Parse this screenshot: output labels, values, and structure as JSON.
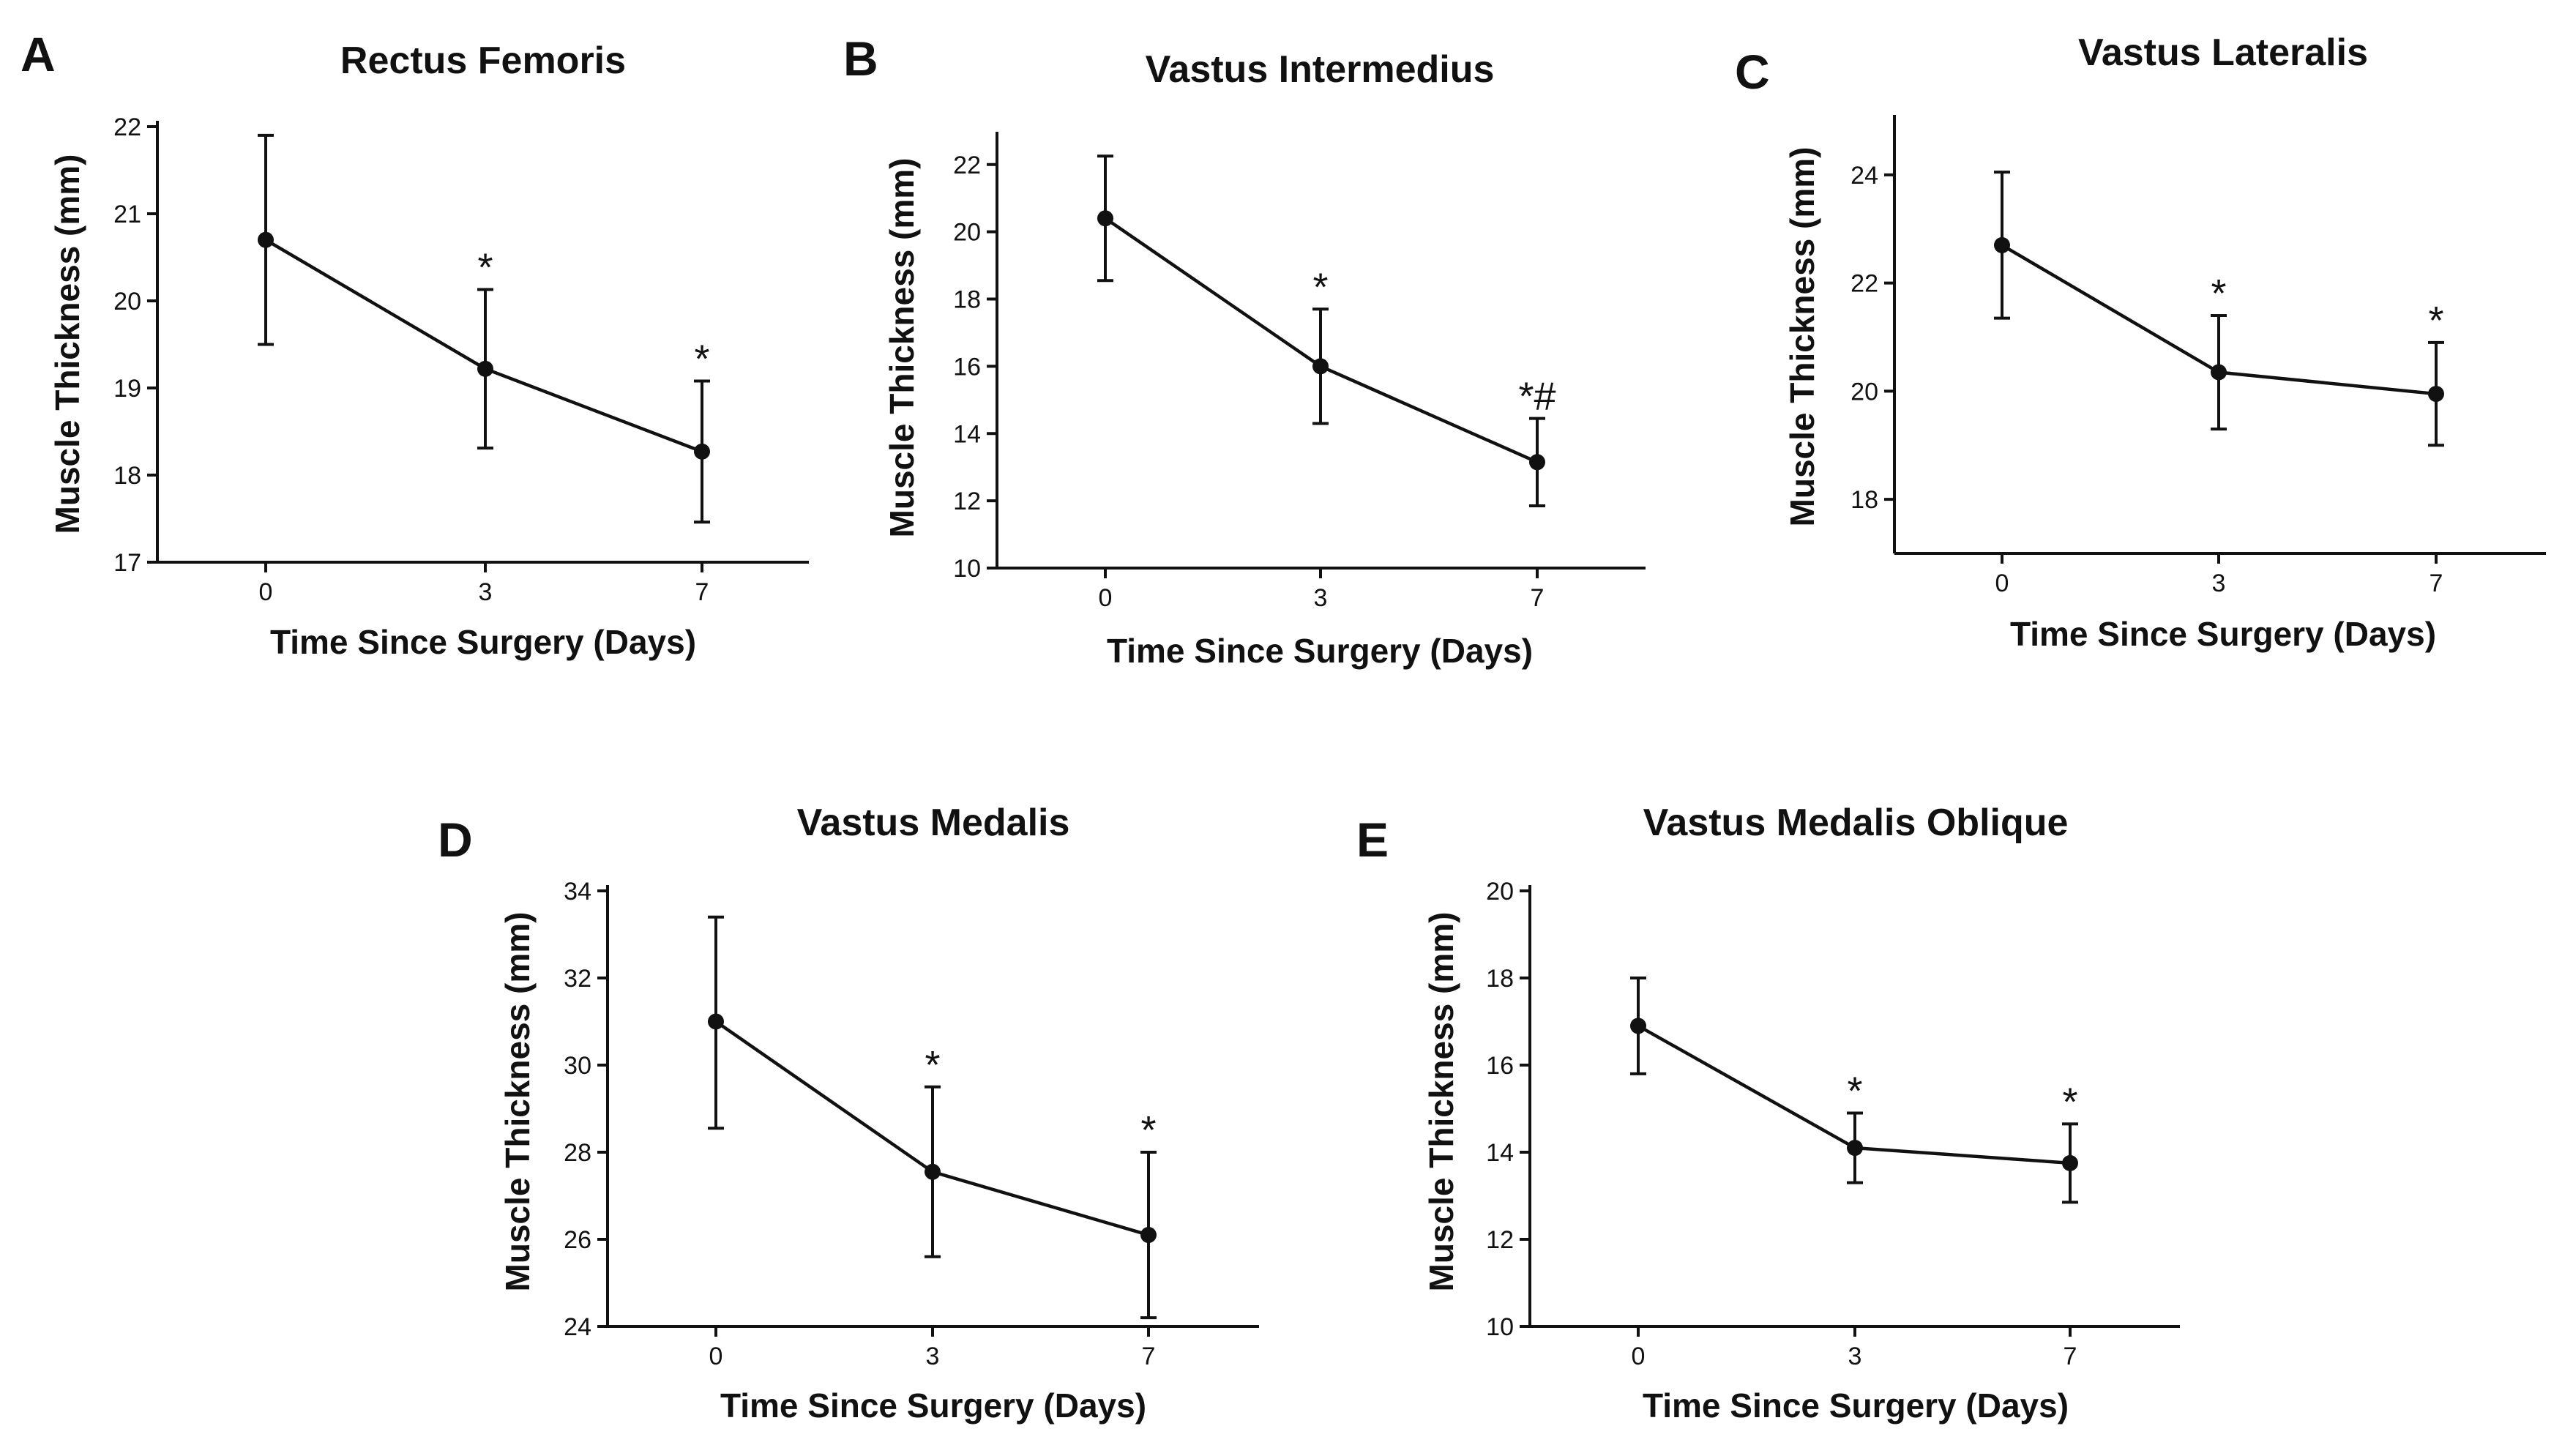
{
  "colors": {
    "ink": "#111111",
    "background": "#ffffff"
  },
  "chart_data": [
    {
      "panel": "A",
      "type": "line",
      "title": "Rectus Femoris",
      "xlabel": "Time Since  Surgery (Days)",
      "ylabel": "Muscle  Thickness (mm)",
      "categories": [
        "0",
        "3",
        "7"
      ],
      "values": [
        20.7,
        19.22,
        18.27
      ],
      "error_upper": [
        21.9,
        20.13,
        19.08
      ],
      "error_lower": [
        19.5,
        18.31,
        17.46
      ],
      "annotations": [
        "",
        "*",
        "*"
      ],
      "ylim": [
        17,
        22
      ],
      "yticks": [
        17,
        18,
        19,
        20,
        21,
        22
      ],
      "ytick_labels": [
        "17",
        "18",
        "19",
        "20",
        "21",
        "22"
      ]
    },
    {
      "panel": "B",
      "type": "line",
      "title": "Vastus Intermedius",
      "xlabel": "Time Since  Surgery (Days)",
      "ylabel": "Muscle  Thickness (mm)",
      "categories": [
        "0",
        "3",
        "7"
      ],
      "values": [
        20.4,
        16.0,
        13.15
      ],
      "error_upper": [
        22.25,
        17.7,
        14.45
      ],
      "error_lower": [
        18.55,
        14.3,
        11.85
      ],
      "annotations": [
        "",
        "*",
        "*#"
      ],
      "ylim": [
        10,
        22.8
      ],
      "yticks": [
        10,
        12,
        14,
        16,
        18,
        20,
        22
      ],
      "ytick_labels": [
        "10",
        "12",
        "14",
        "16",
        "18",
        "20",
        "22"
      ]
    },
    {
      "panel": "C",
      "type": "line",
      "title": "Vastus Lateralis",
      "xlabel": "Time Since  Surgery (Days)",
      "ylabel": "Muscle  Thickness (mm)",
      "categories": [
        "0",
        "3",
        "7"
      ],
      "values": [
        22.7,
        20.35,
        19.95
      ],
      "error_upper": [
        24.05,
        21.4,
        20.9
      ],
      "error_lower": [
        21.35,
        19.3,
        19.0
      ],
      "annotations": [
        "",
        "*",
        "*"
      ],
      "ylim": [
        17,
        25
      ],
      "yticks": [
        18,
        20,
        22,
        24
      ],
      "ytick_labels": [
        "18",
        "20",
        "22",
        "24"
      ]
    },
    {
      "panel": "D",
      "type": "line",
      "title": "Vastus Medalis",
      "xlabel": "Time Since  Surgery (Days)",
      "ylabel": "Muscle  Thickness (mm)",
      "categories": [
        "0",
        "3",
        "7"
      ],
      "values": [
        31.0,
        27.55,
        26.1
      ],
      "error_upper": [
        33.4,
        29.5,
        28.0
      ],
      "error_lower": [
        28.55,
        25.6,
        24.2
      ],
      "annotations": [
        "",
        "*",
        "*"
      ],
      "ylim": [
        24,
        34
      ],
      "yticks": [
        24,
        26,
        28,
        30,
        32,
        34
      ],
      "ytick_labels": [
        "24",
        "26",
        "28",
        "30",
        "32",
        "34"
      ]
    },
    {
      "panel": "E",
      "type": "line",
      "title": "Vastus Medalis Oblique",
      "xlabel": "Time Since  Surgery (Days)",
      "ylabel": "Muscle  Thickness (mm)",
      "categories": [
        "0",
        "3",
        "7"
      ],
      "values": [
        16.9,
        14.1,
        13.75
      ],
      "error_upper": [
        18.0,
        14.9,
        14.65
      ],
      "error_lower": [
        15.8,
        13.3,
        12.85
      ],
      "annotations": [
        "",
        "*",
        "*"
      ],
      "ylim": [
        10,
        20
      ],
      "yticks": [
        10,
        12,
        14,
        16,
        18,
        20
      ],
      "ytick_labels": [
        "10",
        "12",
        "14",
        "16",
        "18",
        "20"
      ]
    }
  ]
}
